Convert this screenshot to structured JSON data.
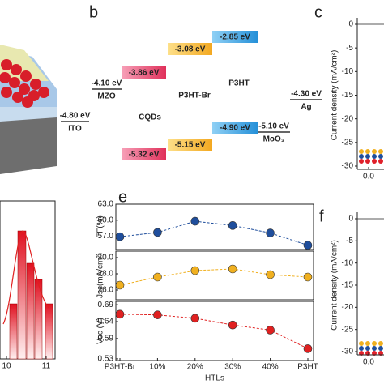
{
  "panel_b": {
    "label": "b",
    "levels": [
      {
        "energy": "-4.80 eV",
        "material": "ITO"
      },
      {
        "energy": "-4.10 eV",
        "material": "MZO"
      },
      {
        "energy": "-3.86 eV"
      },
      {
        "energy": "-5.32 eV"
      },
      {
        "energy": "-3.08 eV"
      },
      {
        "energy": "-5.15 eV"
      },
      {
        "energy": "-2.85 eV"
      },
      {
        "energy": "-4.90 eV"
      },
      {
        "energy": "-5.10 eV",
        "material": "MoO₃"
      },
      {
        "energy": "-4.30 eV",
        "material": "Ag"
      }
    ],
    "materials": [
      "CQDs",
      "P3HT-Br",
      "P3HT"
    ]
  },
  "panel_c": {
    "label": "c",
    "ylabel": "Current density (mA/cm²)",
    "ylim": [
      -30,
      0
    ],
    "yticks": [
      0,
      -5,
      -10,
      -15,
      -20,
      -25,
      -30
    ],
    "xticks": [
      {
        "value": 0,
        "label": "0.0"
      }
    ]
  },
  "panel_f": {
    "label": "f",
    "ylabel": "Current density (mA/cm²)",
    "ylim": [
      -30,
      0
    ],
    "yticks": [
      0,
      -5,
      -10,
      -15,
      -20,
      -25,
      -30
    ],
    "xticks": [
      {
        "value": 0,
        "label": "0.0"
      }
    ]
  },
  "panel_d": {
    "xticks": [
      10,
      11
    ]
  },
  "chart_data": {
    "type": "line",
    "label": "e",
    "xlabel": "HTLs",
    "categories": [
      "P3HT-Br",
      "10%",
      "20%",
      "30%",
      "40%",
      "P3HT"
    ],
    "panels": [
      {
        "ylabel": "FF(%)",
        "color": "#1f4e9c",
        "ylim": [
          54.5,
          63
        ],
        "yticks": [
          {
            "value": 63,
            "label": "63.0"
          },
          {
            "value": 60,
            "label": "60.0"
          },
          {
            "value": 57,
            "label": "57.0"
          }
        ],
        "values": [
          56.9,
          57.7,
          59.8,
          59.0,
          57.6,
          55.3
        ]
      },
      {
        "ylabel": "Jsc(mA/cm²)",
        "color": "#f0b020",
        "ylim": [
          24.8,
          30.8
        ],
        "yticks": [
          {
            "value": 30,
            "label": "30.0"
          },
          {
            "value": 28,
            "label": "28.0"
          },
          {
            "value": 26,
            "label": "26.0"
          }
        ],
        "values": [
          26.6,
          27.6,
          28.4,
          28.6,
          27.9,
          27.6
        ]
      },
      {
        "ylabel": "Voc (V)",
        "color": "#e02020",
        "ylim": [
          0.525,
          0.7
        ],
        "yticks": [
          0.69,
          0.64,
          0.59,
          0.53
        ],
        "values": [
          0.662,
          0.66,
          0.65,
          0.63,
          0.615,
          0.56
        ]
      }
    ]
  }
}
